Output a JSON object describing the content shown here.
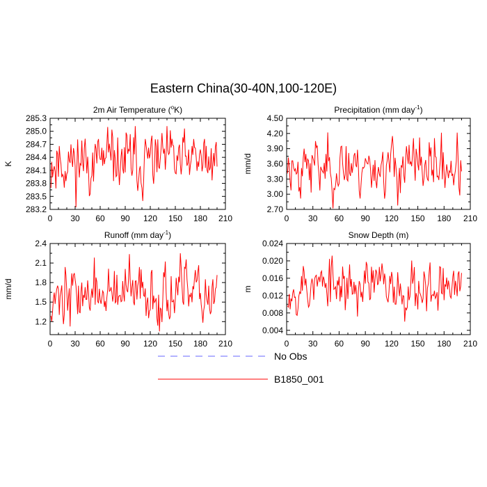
{
  "figure": {
    "title": "Eastern China(30-40N,100-120E)"
  },
  "legend": {
    "entries": [
      {
        "label": "No Obs",
        "color": "#6666ff",
        "dashed": true
      },
      {
        "label": "B1850_001",
        "color": "#ff0000",
        "dashed": false
      }
    ]
  },
  "chart_data": [
    {
      "type": "line",
      "title_main": "2m Air Temperature (",
      "title_sup": "o",
      "title_rest": "K)",
      "title_tail": "",
      "ylabel": "K",
      "xlim": [
        0,
        210
      ],
      "xticks": [
        0,
        30,
        60,
        90,
        120,
        150,
        180,
        210
      ],
      "ylim": [
        283.2,
        285.3
      ],
      "yticks": [
        283.2,
        283.5,
        283.8,
        284.1,
        284.4,
        284.7,
        285.0,
        285.3
      ],
      "ytick_labels": [
        "283.2",
        "283.5",
        "283.8",
        "284.1",
        "284.4",
        "284.7",
        "285.0",
        "285.3"
      ],
      "series": [
        {
          "name": "B1850_001",
          "color": "#ff0000",
          "summary": {
            "n": 200,
            "mean": 284.05,
            "std": 0.32,
            "min": 283.25,
            "max": 285.12
          },
          "seed": 11
        }
      ]
    },
    {
      "type": "line",
      "title_main": "Precipitation (mm day",
      "title_sup": "-1",
      "title_rest": ")",
      "title_tail": "",
      "ylabel": "mm/d",
      "xlim": [
        0,
        210
      ],
      "xticks": [
        0,
        30,
        60,
        90,
        120,
        150,
        180,
        210
      ],
      "ylim": [
        2.7,
        4.5
      ],
      "yticks": [
        2.7,
        3.0,
        3.3,
        3.6,
        3.9,
        4.2,
        4.5
      ],
      "ytick_labels": [
        "2.70",
        "3.00",
        "3.30",
        "3.60",
        "3.90",
        "4.20",
        "4.50"
      ],
      "series": [
        {
          "name": "B1850_001",
          "color": "#ff0000",
          "summary": {
            "n": 200,
            "mean": 3.45,
            "std": 0.27,
            "min": 2.72,
            "max": 4.22
          },
          "seed": 23
        }
      ]
    },
    {
      "type": "line",
      "title_main": "Runoff (mm day",
      "title_sup": "-1",
      "title_rest": ")",
      "title_tail": "",
      "ylabel": "mm/d",
      "xlim": [
        0,
        210
      ],
      "xticks": [
        0,
        30,
        60,
        90,
        120,
        150,
        180,
        210
      ],
      "ylim": [
        1.0,
        2.4
      ],
      "yticks": [
        1.2,
        1.5,
        1.8,
        2.1,
        2.4
      ],
      "ytick_labels": [
        "1.2",
        "1.5",
        "1.8",
        "2.1",
        "2.4"
      ],
      "series": [
        {
          "name": "B1850_001",
          "color": "#ff0000",
          "summary": {
            "n": 200,
            "mean": 1.6,
            "std": 0.22,
            "min": 1.05,
            "max": 2.25
          },
          "seed": 37
        }
      ]
    },
    {
      "type": "line",
      "title_main": "Snow Depth (m)",
      "title_sup": "",
      "title_rest": "",
      "title_tail": "",
      "ylabel": "m",
      "xlim": [
        0,
        210
      ],
      "xticks": [
        0,
        30,
        60,
        90,
        120,
        150,
        180,
        210
      ],
      "ylim": [
        0.003,
        0.024
      ],
      "yticks": [
        0.004,
        0.008,
        0.012,
        0.016,
        0.02,
        0.024
      ],
      "ytick_labels": [
        "0.004",
        "0.008",
        "0.012",
        "0.016",
        "0.020",
        "0.024"
      ],
      "series": [
        {
          "name": "B1850_001",
          "color": "#ff0000",
          "summary": {
            "n": 200,
            "mean": 0.0118,
            "std": 0.0028,
            "min": 0.006,
            "max": 0.0212
          },
          "seed": 53
        }
      ]
    }
  ]
}
